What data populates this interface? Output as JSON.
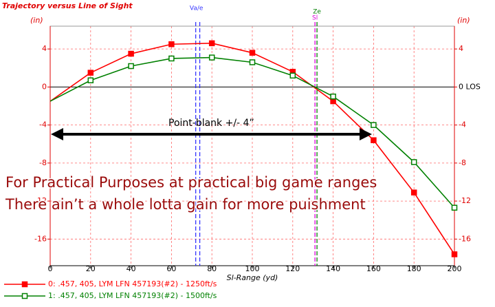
{
  "chart_data": {
    "type": "line",
    "title": "Trajectory versus Line of Sight",
    "y_unit_left": "(in)",
    "y_unit_right": "(in)",
    "x_label": "Sl-Range (yd)",
    "x": [
      0,
      20,
      40,
      60,
      80,
      100,
      120,
      140,
      160,
      180,
      200
    ],
    "series": [
      {
        "name": "0: .457, 405, LYM LFN 457193(#2) - 1250ft/s",
        "color": "#ff0000",
        "values": [
          -1.5,
          1.5,
          3.5,
          4.5,
          4.6,
          3.6,
          1.6,
          -1.5,
          -5.6,
          -11.1,
          -17.6
        ]
      },
      {
        "name": "1: .457, 405, LYM LFN 457193(#2) - 1500ft/s",
        "color": "#008000",
        "values": [
          -1.5,
          0.7,
          2.2,
          3.0,
          3.1,
          2.6,
          1.2,
          -1.0,
          -4.0,
          -7.9,
          -12.7
        ]
      }
    ],
    "xlim": [
      0,
      200
    ],
    "xticks": [
      0,
      20,
      40,
      60,
      80,
      100,
      120,
      140,
      160,
      180,
      200
    ],
    "ylim": [
      -18.8,
      6.4
    ],
    "yticks": [
      4,
      0,
      -4,
      -8,
      -12,
      -16
    ],
    "y2lim": [
      -18.8,
      6.4
    ],
    "y2ticks": [
      4,
      {
        "value": 0,
        "label": "0 LOS"
      },
      -4,
      -8,
      -12,
      -16
    ],
    "grid": true,
    "vlines": [
      {
        "label": "Va/e",
        "x": 72,
        "color": "#3333ff"
      },
      {
        "x": 74,
        "color": "#3333ff"
      },
      {
        "label": "Sl",
        "x": 131,
        "color": "#dd00dd"
      },
      {
        "label": "Ze",
        "x": 132,
        "color": "#008000"
      }
    ],
    "annotation": "Point-blank +/- 4”",
    "overlay_text": [
      "For Practical Purposes at practical big game ranges",
      "There ain’t a whole lotta gain for more puishment"
    ]
  }
}
